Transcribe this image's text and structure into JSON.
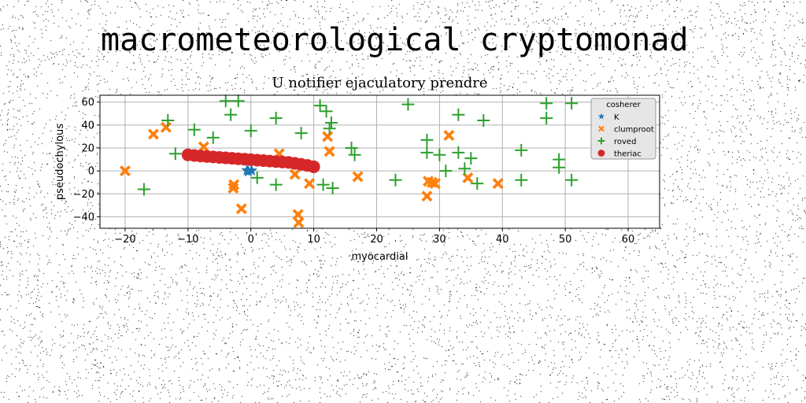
{
  "page_title": "macrometeorological cryptomonad",
  "colors": {
    "K": "#1f77b4",
    "clumproot": "#ff7f0e",
    "roved": "#2ca02c",
    "theriac": "#d62728",
    "grid": "#b0b0b0"
  },
  "chart_data": {
    "type": "scatter",
    "title": "U notifier ejaculatory prendre",
    "xlabel": "myocardial",
    "ylabel": "pseudochylous",
    "xlim": [
      -24,
      65
    ],
    "ylim": [
      -50,
      66
    ],
    "xticks": [
      -20,
      -10,
      0,
      10,
      20,
      30,
      40,
      50,
      60
    ],
    "yticks": [
      -40,
      -20,
      0,
      20,
      40,
      60
    ],
    "xtick_labels": [
      "−20",
      "−10",
      "0",
      "10",
      "20",
      "30",
      "40",
      "50",
      "60"
    ],
    "ytick_labels": [
      "−40",
      "−20",
      "0",
      "20",
      "40",
      "60"
    ],
    "grid": true,
    "legend": {
      "title": "cosherer",
      "placement": "top-right",
      "entries": [
        "K",
        "clumproot",
        "roved",
        "theriac"
      ]
    },
    "series": [
      {
        "name": "K",
        "marker": "star",
        "points": [
          [
            -0.6,
            0.5
          ],
          [
            -0.4,
            -0.5
          ],
          [
            0.1,
            0.3
          ]
        ]
      },
      {
        "name": "clumproot",
        "marker": "x-filled",
        "points": [
          [
            -20,
            0
          ],
          [
            -15.5,
            32
          ],
          [
            -13.5,
            38
          ],
          [
            -7.5,
            21
          ],
          [
            -2.8,
            -15
          ],
          [
            -2.7,
            -12
          ],
          [
            -1.5,
            -33
          ],
          [
            4.5,
            15
          ],
          [
            7,
            -3
          ],
          [
            7.5,
            -38
          ],
          [
            7.6,
            -45
          ],
          [
            9.3,
            -11
          ],
          [
            12.2,
            30
          ],
          [
            12.5,
            17
          ],
          [
            17,
            -5
          ],
          [
            28,
            -22
          ],
          [
            28.2,
            -9
          ],
          [
            28.8,
            -10
          ],
          [
            29.3,
            -11
          ],
          [
            31.5,
            31
          ],
          [
            34.5,
            -6
          ],
          [
            39.3,
            -11
          ]
        ]
      },
      {
        "name": "roved",
        "marker": "plus",
        "points": [
          [
            -17,
            -16
          ],
          [
            -13.2,
            44
          ],
          [
            -12,
            15
          ],
          [
            -9,
            36
          ],
          [
            -6,
            29
          ],
          [
            -4,
            61
          ],
          [
            -3.2,
            49
          ],
          [
            -2,
            61
          ],
          [
            0,
            35
          ],
          [
            1,
            -6
          ],
          [
            4,
            -12
          ],
          [
            4,
            46
          ],
          [
            8,
            33
          ],
          [
            11,
            57
          ],
          [
            11.5,
            -12
          ],
          [
            12,
            52
          ],
          [
            12.5,
            37
          ],
          [
            12.8,
            42
          ],
          [
            13,
            -15
          ],
          [
            16,
            20
          ],
          [
            16.5,
            14
          ],
          [
            23,
            -8
          ],
          [
            25,
            58
          ],
          [
            28,
            27
          ],
          [
            28,
            16
          ],
          [
            30,
            14
          ],
          [
            31,
            0
          ],
          [
            33,
            49
          ],
          [
            33,
            16
          ],
          [
            34,
            2
          ],
          [
            35,
            11
          ],
          [
            36,
            -11
          ],
          [
            37,
            44
          ],
          [
            43,
            18
          ],
          [
            43,
            -8
          ],
          [
            47,
            59
          ],
          [
            47,
            46
          ],
          [
            49,
            10
          ],
          [
            49,
            3
          ],
          [
            51,
            59
          ],
          [
            51,
            -8
          ]
        ]
      },
      {
        "name": "theriac",
        "marker": "circle",
        "points": [
          [
            -10,
            14
          ],
          [
            -9,
            13.5
          ],
          [
            -8,
            13
          ],
          [
            -7,
            12.6
          ],
          [
            -6,
            12.2
          ],
          [
            -5,
            11.8
          ],
          [
            -4,
            11.4
          ],
          [
            -3,
            11
          ],
          [
            -2,
            10.6
          ],
          [
            -1,
            10.2
          ],
          [
            0,
            9.8
          ],
          [
            1,
            9.4
          ],
          [
            2,
            9
          ],
          [
            3,
            8.6
          ],
          [
            4,
            8.2
          ],
          [
            5,
            7.8
          ],
          [
            6,
            7.4
          ],
          [
            7,
            6.6
          ],
          [
            8,
            5.8
          ],
          [
            9,
            4.8
          ],
          [
            10,
            3.6
          ]
        ]
      }
    ]
  }
}
